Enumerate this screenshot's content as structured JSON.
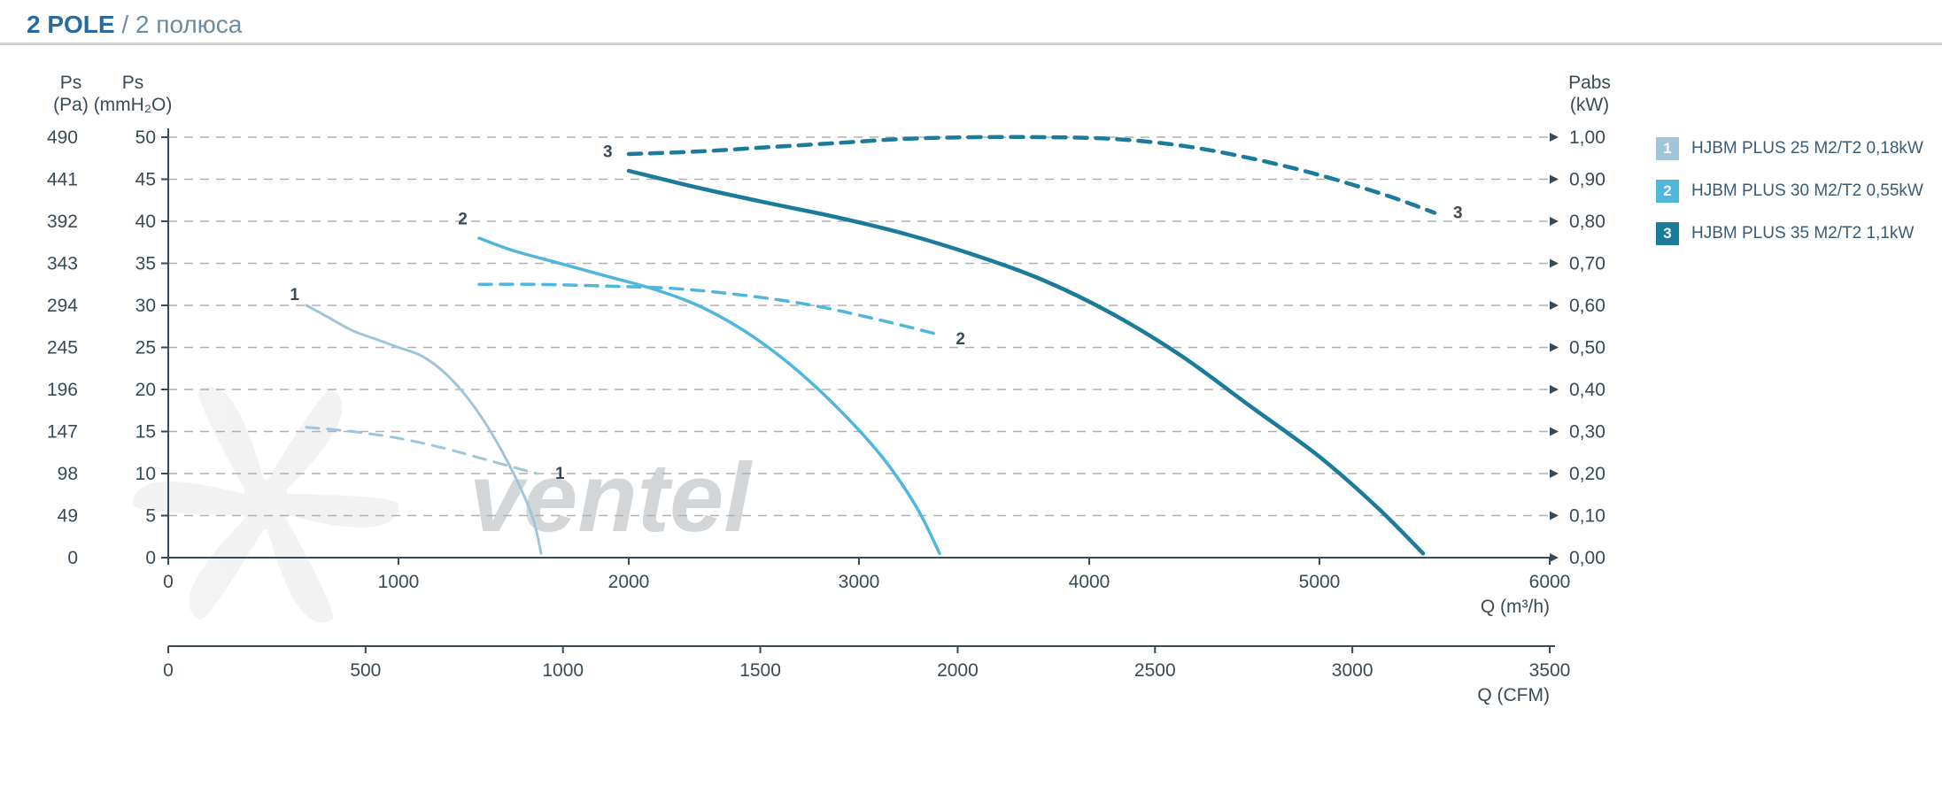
{
  "title": {
    "bold": "2 POLE",
    "light": " / 2 полюса"
  },
  "colors": {
    "series": [
      "#a0c4d8",
      "#4fb6de",
      "#1a7b9a"
    ],
    "grid": "#b0b0b0",
    "axis": "#3a4a55",
    "background": "#ffffff",
    "watermark": "#b8b8b8"
  },
  "watermark_text": "ventel",
  "axes": {
    "y_left_pa": {
      "title_top1": "Ps",
      "title_top2": "(Pa)",
      "ticks": [
        0,
        49,
        98,
        147,
        196,
        245,
        294,
        343,
        392,
        441,
        490
      ]
    },
    "y_left_mmh2o": {
      "title_top1": "Ps",
      "title_top2": "(mmH₂O)",
      "ticks": [
        0,
        5,
        10,
        15,
        20,
        25,
        30,
        35,
        40,
        45,
        50
      ]
    },
    "y_right_kw": {
      "title_top1": "Pabs",
      "title_top2": "(kW)",
      "ticks": [
        "0,00",
        "0,10",
        "0,20",
        "0,30",
        "0,40",
        "0,50",
        "0,60",
        "0,70",
        "0,80",
        "0,90",
        "1,00"
      ]
    },
    "x_m3h": {
      "title": "Q (m³/h)",
      "ticks": [
        0,
        1000,
        2000,
        3000,
        4000,
        5000,
        6000
      ]
    },
    "x_cfm": {
      "title": "Q (CFM)",
      "ticks": [
        0,
        500,
        1000,
        1500,
        2000,
        2500,
        3000,
        3500
      ]
    }
  },
  "plot": {
    "x_domain": [
      0,
      6000
    ],
    "y_domain": [
      0,
      50
    ]
  },
  "legend": [
    {
      "num": "1",
      "label": "HJBM PLUS 25 M2/T2 0,18kW"
    },
    {
      "num": "2",
      "label": "HJBM PLUS 30 M2/T2 0,55kW"
    },
    {
      "num": "3",
      "label": "HJBM PLUS 35 M2/T2 1,1kW"
    }
  ],
  "series": [
    {
      "id": 1,
      "color_idx": 0,
      "line_width": 3,
      "solid": [
        [
          600,
          30
        ],
        [
          700,
          28.5
        ],
        [
          800,
          27
        ],
        [
          900,
          26
        ],
        [
          1000,
          25
        ],
        [
          1100,
          24
        ],
        [
          1200,
          22
        ],
        [
          1300,
          19
        ],
        [
          1400,
          15
        ],
        [
          1500,
          10
        ],
        [
          1580,
          5
        ],
        [
          1620,
          0.5
        ]
      ],
      "dashed": [
        [
          600,
          15.5
        ],
        [
          800,
          15
        ],
        [
          1000,
          14.2
        ],
        [
          1200,
          13
        ],
        [
          1400,
          11.5
        ],
        [
          1600,
          10
        ]
      ],
      "solid_label_at": [
        600,
        30
      ],
      "dashed_label_at": [
        1650,
        10
      ]
    },
    {
      "id": 2,
      "color_idx": 1,
      "line_width": 3.5,
      "solid": [
        [
          1350,
          38
        ],
        [
          1500,
          36.5
        ],
        [
          1700,
          35
        ],
        [
          1900,
          33.5
        ],
        [
          2100,
          32
        ],
        [
          2300,
          30
        ],
        [
          2500,
          27
        ],
        [
          2700,
          23
        ],
        [
          2900,
          18
        ],
        [
          3100,
          12
        ],
        [
          3250,
          6
        ],
        [
          3350,
          0.5
        ]
      ],
      "dashed": [
        [
          1350,
          32.5
        ],
        [
          1600,
          32.5
        ],
        [
          1900,
          32.3
        ],
        [
          2200,
          32
        ],
        [
          2500,
          31.2
        ],
        [
          2800,
          30
        ],
        [
          3100,
          28.2
        ],
        [
          3350,
          26.5
        ]
      ],
      "solid_label_at": [
        1330,
        39
      ],
      "dashed_label_at": [
        3390,
        26
      ]
    },
    {
      "id": 3,
      "color_idx": 2,
      "line_width": 4.5,
      "solid": [
        [
          2000,
          46
        ],
        [
          2300,
          44
        ],
        [
          2600,
          42.2
        ],
        [
          2900,
          40.5
        ],
        [
          3200,
          38.5
        ],
        [
          3500,
          36
        ],
        [
          3800,
          33
        ],
        [
          4100,
          29
        ],
        [
          4400,
          24
        ],
        [
          4700,
          18
        ],
        [
          5000,
          12
        ],
        [
          5250,
          6
        ],
        [
          5450,
          0.5
        ]
      ],
      "dashed": [
        [
          2000,
          48
        ],
        [
          2300,
          48.3
        ],
        [
          2600,
          48.8
        ],
        [
          2900,
          49.3
        ],
        [
          3200,
          49.8
        ],
        [
          3500,
          50
        ],
        [
          3800,
          50
        ],
        [
          4100,
          49.8
        ],
        [
          4400,
          49
        ],
        [
          4700,
          47.5
        ],
        [
          5000,
          45.5
        ],
        [
          5300,
          43
        ],
        [
          5500,
          41
        ]
      ],
      "solid_label_at": [
        1960,
        47
      ],
      "dashed_label_at": [
        5550,
        41
      ]
    }
  ],
  "style": {
    "title_fontsize": 28,
    "tick_fontsize": 21,
    "dash_pattern": "14,10",
    "grid_dash": "10,8"
  }
}
